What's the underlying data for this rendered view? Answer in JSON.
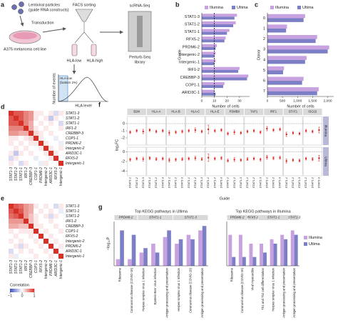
{
  "panel_labels": [
    "a",
    "b",
    "c",
    "d",
    "e",
    "f",
    "g"
  ],
  "diagram": {
    "particles": "Lentiviral particles",
    "constructs": "(guide RNA constructs)",
    "transduction": "Transduction",
    "cell_line": "A375 melanoma cell line",
    "facs": "FACS sorting",
    "hla_low": "HLA-low",
    "hla_high": "HLA-high",
    "scrna": "scRNA-Seq",
    "library_1": "Perturb-Seq",
    "library_2": "library",
    "gate_1": "HLA-low",
    "gate_2": "(bottom 2%)",
    "y_label": "Number of events",
    "x_label": "HLA level"
  },
  "chart_data": [
    {
      "type": "hbar",
      "xlabel": "Number of cells",
      "ylabel": "Guide",
      "categories": [
        "STAT1-3",
        "STAT1-2",
        "STAT1-1",
        "RFX5-2",
        "PRDM6-2",
        "Intergenic-2",
        "Intergenic-1",
        "IRF1-2",
        "CREBBP-3",
        "COP1-1",
        "ARID3C-1"
      ],
      "series": [
        {
          "name": "Illumina",
          "color": "#c8a2e0",
          "values": [
            28,
            27,
            22,
            19,
            12,
            11,
            11,
            30,
            37,
            18,
            10
          ]
        },
        {
          "name": "Ultima",
          "color": "#7d7fc6",
          "values": [
            26,
            25,
            20,
            18,
            11,
            10,
            10,
            29,
            36,
            17,
            11
          ]
        }
      ],
      "xlim": [
        0,
        38
      ],
      "xticks": [
        0,
        10,
        20,
        30
      ],
      "vline": 10
    },
    {
      "type": "hbar",
      "xlabel": "Number of cells",
      "ylabel": "Donor",
      "categories": [
        "0",
        "1",
        "2",
        "3",
        "4",
        "5",
        "6",
        "7"
      ],
      "series": [
        {
          "name": "Illumina",
          "color": "#c8a2e0",
          "values": [
            1250,
            650,
            1650,
            2050,
            1300,
            550,
            1200,
            1700
          ]
        },
        {
          "name": "Ultima",
          "color": "#7d7fc6",
          "values": [
            1200,
            620,
            1600,
            2000,
            1250,
            520,
            1150,
            1650
          ]
        }
      ],
      "xlim": [
        0,
        2200
      ],
      "xticks": [
        0,
        500,
        {
          "value": 1000,
          "label": "1,000"
        },
        {
          "value": 1500,
          "label": "1,500"
        },
        {
          "value": 2000,
          "label": "2,000"
        }
      ]
    },
    {
      "type": "heatmap",
      "labels": [
        "STAT1-3",
        "STAT1-2",
        "STAT1-1",
        "IRF1-2",
        "CREBBP-3",
        "COP1-1",
        "PRDM6-2",
        "Intergenic-2",
        "ARID3C-1",
        "RFX5-2",
        "Intergenic-1"
      ],
      "values": [
        [
          1,
          0.8,
          0.8,
          0.6,
          0.5,
          0.1,
          0.1,
          0,
          0.1,
          -0.2,
          0.1
        ],
        [
          0.8,
          1,
          0.8,
          0.6,
          0.5,
          0.1,
          0,
          0.1,
          -0.3,
          0.1,
          0
        ],
        [
          0.8,
          0.8,
          1,
          0.6,
          0.4,
          0,
          0.1,
          0,
          0.1,
          0,
          -0.2
        ],
        [
          0.6,
          0.6,
          0.6,
          1,
          0.4,
          0.1,
          0,
          0.1,
          0,
          0,
          0.1
        ],
        [
          0.5,
          0.5,
          0.4,
          0.4,
          1,
          0.2,
          0.1,
          0,
          0.1,
          0,
          0
        ],
        [
          0.1,
          0.1,
          0,
          0.1,
          0.2,
          1,
          0.1,
          0,
          0,
          -0.1,
          0
        ],
        [
          0.1,
          0,
          0.1,
          0,
          0.1,
          0.1,
          1,
          0.1,
          0,
          0,
          -0.1
        ],
        [
          0,
          0.1,
          0,
          0.1,
          0,
          0,
          0.1,
          1,
          0.1,
          0,
          0.1
        ],
        [
          0.1,
          -0.3,
          0.1,
          0,
          0.1,
          0,
          0,
          0.1,
          1,
          0.1,
          0
        ],
        [
          -0.2,
          0.1,
          0,
          0,
          0,
          -0.1,
          0,
          0,
          0.1,
          1,
          0
        ],
        [
          0.1,
          0,
          -0.2,
          0.1,
          0,
          0,
          -0.1,
          0.1,
          0,
          0,
          1
        ]
      ],
      "vlim": [
        -1,
        1
      ]
    },
    {
      "type": "heatmap",
      "labels": [
        "STAT1-3",
        "STAT1-1",
        "STAT1-2",
        "IRF1-2",
        "CREBBP-3",
        "COP1-1",
        "RFX5-2",
        "Intergenic-2",
        "PRDM6-2",
        "ARID3C-1",
        "Intergenic-1"
      ],
      "values": [
        [
          1,
          0.8,
          0.7,
          0.5,
          0.4,
          0.1,
          0,
          0.1,
          0,
          -0.2,
          0.1
        ],
        [
          0.8,
          1,
          0.8,
          0.5,
          0.4,
          0,
          0.1,
          0,
          0.1,
          0,
          -0.1
        ],
        [
          0.7,
          0.8,
          1,
          0.5,
          0.3,
          0.1,
          0,
          0.1,
          -0.2,
          0.1,
          0
        ],
        [
          0.5,
          0.5,
          0.5,
          1,
          0.3,
          0.1,
          0,
          0,
          0.1,
          0,
          0
        ],
        [
          0.4,
          0.4,
          0.3,
          0.3,
          1,
          0.1,
          0.1,
          0,
          0,
          0.1,
          0
        ],
        [
          0.1,
          0,
          0.1,
          0.1,
          0.1,
          1,
          0,
          0.1,
          0,
          0,
          0.1
        ],
        [
          0,
          0.1,
          0,
          0,
          0.1,
          0,
          1,
          0,
          0.1,
          0,
          0
        ],
        [
          0.1,
          0,
          0.1,
          0,
          0,
          0.1,
          0,
          1,
          0,
          0.1,
          0
        ],
        [
          0,
          0.1,
          -0.2,
          0.1,
          0,
          0,
          0.1,
          0,
          1,
          0,
          0.1
        ],
        [
          -0.2,
          0,
          0.1,
          0,
          0.1,
          0,
          0,
          0.1,
          0,
          1,
          0
        ],
        [
          0.1,
          -0.1,
          0,
          0,
          0,
          0.1,
          0,
          0,
          0.1,
          0,
          1
        ]
      ],
      "vlim": [
        -1,
        1
      ],
      "colorbar_label": "Correlation",
      "colorbar_ticks": [
        {
          "value": -1,
          "label": "−1"
        },
        0,
        1
      ]
    },
    {
      "type": "errorbar",
      "ylabel": "log₂FC",
      "xlabel": "Guide",
      "genes": [
        "B2M",
        "HLA-A",
        "HLA-B",
        "HLA-C",
        "HLA-E",
        "PSMB8",
        "TAP1",
        "IRF1",
        "STAT1",
        "ISG15"
      ],
      "guides": [
        "STAT1-1",
        "STAT1-2",
        "STAT1-3"
      ],
      "color": "#e0201b",
      "series": [
        {
          "name": "Illumina",
          "ylim": [
            -3,
            1
          ],
          "yticks": [
            0,
            -1,
            -2
          ],
          "values": [
            -1.2,
            -1,
            -1.1,
            -0.9,
            -1.1,
            -1,
            -1.3,
            -1.2,
            -1.1,
            -1,
            -0.9,
            -1.1,
            -0.8,
            -1,
            -0.9,
            -1.4,
            -1.2,
            -1.3,
            -1.1,
            -1,
            -1.2,
            -0.7,
            -0.9,
            -0.8,
            -1.5,
            -1.3,
            -1.4,
            -1,
            -1.1,
            -0.9
          ],
          "errors": [
            0.2,
            0.2,
            0.3,
            0.2,
            0.2,
            0.2,
            0.3,
            0.2,
            0.2,
            0.2,
            0.3,
            0.2,
            0.6,
            0.2,
            0.2,
            0.2,
            0.3,
            0.2,
            0.2,
            0.2,
            0.2,
            0.3,
            0.2,
            0.2,
            0.3,
            0.2,
            0.2,
            0.2,
            0.2,
            0.4
          ]
        },
        {
          "name": "Ultima",
          "ylim": [
            -5,
            1
          ],
          "yticks": [
            0,
            -2,
            -4
          ],
          "values": [
            -1.6,
            -1.4,
            -1.5,
            -1.3,
            -1.5,
            -1.4,
            -1.7,
            -1.6,
            -1.5,
            -1.4,
            -1.3,
            -1.5,
            -1.2,
            -1.4,
            -1.3,
            -1.8,
            -1.6,
            -1.7,
            -1.5,
            -1.4,
            -1.6,
            -1.1,
            -1.3,
            -1.2,
            -1.9,
            -1.7,
            -1.8,
            -1.4,
            -1.5,
            -1.3
          ],
          "errors": [
            0.3,
            0.3,
            0.4,
            0.3,
            0.3,
            0.3,
            0.4,
            0.3,
            0.3,
            0.3,
            0.4,
            0.3,
            0.8,
            0.3,
            0.3,
            0.3,
            0.4,
            0.3,
            0.3,
            0.3,
            0.3,
            0.4,
            0.3,
            0.3,
            0.4,
            0.3,
            0.3,
            0.3,
            0.3,
            0.6
          ]
        }
      ]
    },
    {
      "type": "facetbar",
      "title": "Top KEGG pathways in Ultima",
      "ylabel": "−log₁₀P",
      "ylim": [
        0,
        10
      ],
      "colors": [
        "#c8a2e0",
        "#7d7fc6"
      ],
      "facets": [
        {
          "label": "PRDM6-2",
          "categories": [
            "Ribosome",
            "Coronavirus disease (COVID-19)"
          ],
          "series": [
            {
              "values": [
                1.5,
                1.5
              ]
            },
            {
              "values": [
                8,
                7
              ]
            }
          ]
        },
        {
          "label": "STAT1-1",
          "categories": [
            "Herpes simplex virus 1 infection",
            "Epstein-Barr virus infection",
            "Antigen processing and presentation"
          ],
          "series": [
            {
              "values": [
                3,
                5,
                6.5
              ]
            },
            {
              "values": [
                4,
                3,
                8
              ]
            }
          ]
        },
        {
          "label": "STAT1-3",
          "categories": [
            "Herpes simplex virus 1 infection",
            "Coronavirus disease (COVID-19)",
            "Antigen processing and presentation"
          ],
          "series": [
            {
              "values": [
                5,
                7,
                8
              ]
            },
            {
              "values": [
                6,
                6,
                9
              ]
            }
          ]
        }
      ]
    },
    {
      "type": "facetbar",
      "title": "Top KEGG pathways in Illumina",
      "ylim": [
        0,
        10
      ],
      "series": [
        {
          "name": "Illumina",
          "color": "#c8a2e0"
        },
        {
          "name": "Ultima",
          "color": "#7d7fc6"
        }
      ],
      "facets": [
        {
          "label": "PRDM6-2",
          "categories": [
            "Ribosome",
            "Coronavirus disease (COVID-19)"
          ],
          "series": [
            {
              "values": [
                7,
                7
              ]
            },
            {
              "values": [
                2,
                2
              ]
            }
          ]
        },
        {
          "label": "RFX5-2",
          "categories": [
            "Viral myocarditis"
          ],
          "series": [
            {
              "values": [
                5
              ]
            },
            {
              "values": [
                2
              ]
            }
          ]
        },
        {
          "label": "STAT1-1",
          "categories": [
            "Th1 and Th2 cell differentiation",
            "Herpes simplex virus 1 infection",
            "Antigen processing and presentation"
          ],
          "series": [
            {
              "values": [
                5,
                6,
                7
              ]
            },
            {
              "values": [
                3,
                5,
                6
              ]
            }
          ]
        },
        {
          "label": "STAT1-3",
          "categories": [
            "Antigen processing and presentation"
          ],
          "series": [
            {
              "values": [
                8
              ]
            },
            {
              "values": [
                7
              ]
            }
          ]
        }
      ]
    }
  ]
}
